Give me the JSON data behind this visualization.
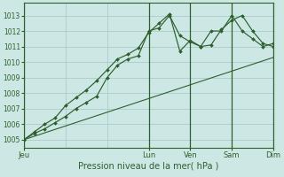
{
  "background_color": "#cde8e4",
  "grid_color": "#aaccc8",
  "line_color": "#2d5f2d",
  "title": "Pression niveau de la mer( hPa )",
  "ylim": [
    1004.5,
    1013.8
  ],
  "yticks": [
    1005,
    1006,
    1007,
    1008,
    1009,
    1010,
    1011,
    1012,
    1013
  ],
  "xlim": [
    0,
    144
  ],
  "x_day_positions": [
    0,
    72,
    96,
    120,
    144
  ],
  "x_day_labels": [
    "Jeu",
    "Lun",
    "Ven",
    "Sam",
    "Dim"
  ],
  "series1_x": [
    0,
    6,
    12,
    18,
    24,
    30,
    36,
    42,
    48,
    54,
    60,
    66,
    72,
    78,
    84,
    90,
    96,
    102,
    108,
    114,
    120,
    126,
    132,
    138,
    144
  ],
  "series1_y": [
    1005.0,
    1005.4,
    1005.7,
    1006.1,
    1006.5,
    1007.0,
    1007.4,
    1007.8,
    1009.0,
    1009.8,
    1010.2,
    1010.4,
    1012.0,
    1012.2,
    1013.0,
    1011.7,
    1011.3,
    1011.0,
    1011.1,
    1012.1,
    1012.7,
    1013.0,
    1012.0,
    1011.2,
    1011.0
  ],
  "series2_x": [
    0,
    6,
    12,
    18,
    24,
    30,
    36,
    42,
    48,
    54,
    60,
    66,
    72,
    78,
    84,
    90,
    96,
    102,
    108,
    114,
    120,
    126,
    132,
    138,
    144
  ],
  "series2_y": [
    1005.0,
    1005.5,
    1006.0,
    1006.4,
    1007.2,
    1007.7,
    1008.2,
    1008.8,
    1009.5,
    1010.2,
    1010.5,
    1010.9,
    1011.9,
    1012.5,
    1013.1,
    1010.7,
    1011.4,
    1011.0,
    1012.0,
    1012.0,
    1013.0,
    1012.0,
    1011.5,
    1011.0,
    1011.2
  ],
  "series3_x": [
    0,
    144
  ],
  "series3_y": [
    1005.0,
    1010.3
  ],
  "vlines_x": [
    72,
    96,
    120,
    144
  ],
  "minor_vlines_step": 24
}
